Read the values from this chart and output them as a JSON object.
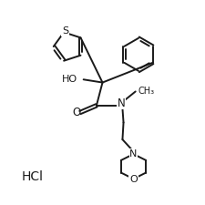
{
  "background_color": "#ffffff",
  "line_color": "#1a1a1a",
  "line_width": 1.4,
  "figsize": [
    2.25,
    2.25
  ],
  "dpi": 100,
  "xlim": [
    0,
    10
  ],
  "ylim": [
    0,
    10
  ]
}
